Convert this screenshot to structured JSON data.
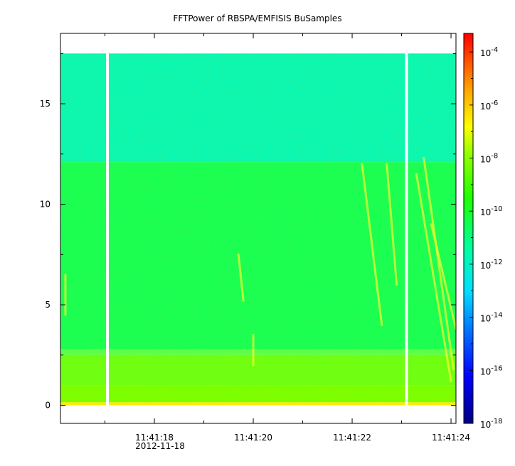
{
  "chart_data": {
    "type": "heatmap",
    "title": "FFTPower of RBSPA/EMFISIS  BuSamples",
    "xlabel": "",
    "ylabel": "",
    "x_ticks": [
      {
        "label": "11:41:18",
        "sub": "2012-11-18",
        "t": 18
      },
      {
        "label": "11:41:20",
        "sub": "",
        "t": 20
      },
      {
        "label": "11:41:22",
        "sub": "",
        "t": 22
      },
      {
        "label": "11:41:24",
        "sub": "",
        "t": 24
      }
    ],
    "x_range_seconds": [
      16.1,
      24.1
    ],
    "y_ticks": [
      0,
      5,
      10,
      15
    ],
    "ylim": [
      -0.9,
      18.5
    ],
    "data_y_range": [
      0,
      17.5
    ],
    "gaps_seconds": [
      17.05,
      23.1
    ],
    "colorbar": {
      "scale": "log",
      "min_exp": -18,
      "max_exp": -3.3,
      "tick_exps": [
        -4,
        -6,
        -8,
        -10,
        -12,
        -14,
        -16,
        -18
      ],
      "tick_base": "10"
    },
    "bands": [
      {
        "y_from": 0,
        "y_to": 0.15,
        "log_power": -6.5
      },
      {
        "y_from": 0.15,
        "y_to": 1.0,
        "log_power": -8.3
      },
      {
        "y_from": 1.0,
        "y_to": 2.5,
        "log_power": -9.3
      },
      {
        "y_from": 2.5,
        "y_to": 12.1,
        "log_power": -10.5
      },
      {
        "y_from": 12.1,
        "y_to": 17.5,
        "log_power": -11.8
      }
    ],
    "features": [
      {
        "t0": 16.2,
        "y0": 6.5,
        "t1": 16.2,
        "y1": 4.5
      },
      {
        "t0": 19.7,
        "y0": 7.5,
        "t1": 19.8,
        "y1": 5.2
      },
      {
        "t0": 20.0,
        "y0": 3.5,
        "t1": 20.0,
        "y1": 2.0
      },
      {
        "t0": 22.2,
        "y0": 12.0,
        "t1": 22.6,
        "y1": 4.0
      },
      {
        "t0": 22.7,
        "y0": 12.0,
        "t1": 22.9,
        "y1": 6.0
      },
      {
        "t0": 23.3,
        "y0": 11.5,
        "t1": 24.0,
        "y1": 1.2
      },
      {
        "t0": 23.45,
        "y0": 12.3,
        "t1": 24.05,
        "y1": 1.8
      },
      {
        "t0": 23.6,
        "y0": 9.0,
        "t1": 24.1,
        "y1": 3.8
      }
    ]
  }
}
